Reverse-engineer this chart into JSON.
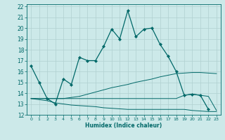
{
  "xlabel": "Humidex (Indice chaleur)",
  "bg_color": "#cce9e9",
  "grid_color": "#b0d0d0",
  "line_color": "#006868",
  "xlim": [
    -0.5,
    23.5
  ],
  "ylim": [
    12,
    22.2
  ],
  "yticks": [
    12,
    13,
    14,
    15,
    16,
    17,
    18,
    19,
    20,
    21,
    22
  ],
  "xticks": [
    0,
    1,
    2,
    3,
    4,
    5,
    6,
    7,
    8,
    9,
    10,
    11,
    12,
    13,
    14,
    15,
    16,
    17,
    18,
    19,
    20,
    21,
    22,
    23
  ],
  "line1_x": [
    0,
    1,
    2,
    3,
    4,
    5,
    6,
    7,
    8,
    9,
    10,
    11,
    12,
    13,
    14,
    15,
    16,
    17,
    18,
    19,
    20,
    21,
    22
  ],
  "line1_y": [
    16.5,
    15.0,
    13.5,
    13.0,
    15.3,
    14.8,
    17.3,
    17.0,
    17.0,
    18.3,
    19.9,
    19.0,
    21.6,
    19.2,
    19.9,
    20.0,
    18.5,
    17.4,
    16.0,
    13.8,
    13.9,
    13.8,
    12.5
  ],
  "line2_x": [
    0,
    1,
    2,
    3,
    4,
    5,
    6,
    7,
    8,
    9,
    10,
    11,
    12,
    13,
    14,
    15,
    16,
    17,
    18,
    19,
    20,
    21,
    22,
    23
  ],
  "line2_y": [
    13.5,
    13.5,
    13.5,
    13.5,
    13.5,
    13.6,
    13.7,
    13.9,
    14.1,
    14.3,
    14.5,
    14.65,
    14.8,
    15.0,
    15.15,
    15.3,
    15.5,
    15.65,
    15.8,
    15.85,
    15.9,
    15.9,
    15.85,
    15.8
  ],
  "line3_x": [
    0,
    1,
    2,
    3,
    4,
    5,
    6,
    7,
    8,
    9,
    10,
    11,
    12,
    13,
    14,
    15,
    16,
    17,
    18,
    19,
    20,
    21,
    22,
    23
  ],
  "line3_y": [
    13.5,
    13.4,
    13.3,
    13.1,
    13.0,
    12.9,
    12.85,
    12.8,
    12.75,
    12.65,
    12.6,
    12.55,
    12.5,
    12.5,
    12.5,
    12.5,
    12.5,
    12.5,
    12.5,
    12.5,
    12.4,
    12.35,
    12.3,
    12.3
  ],
  "line4_x": [
    0,
    1,
    2,
    3,
    4,
    5,
    6,
    7,
    8,
    9,
    10,
    11,
    12,
    13,
    14,
    15,
    16,
    17,
    18,
    19,
    20,
    21,
    22,
    23
  ],
  "line4_y": [
    13.5,
    13.5,
    13.5,
    13.5,
    13.5,
    13.5,
    13.5,
    13.5,
    13.5,
    13.5,
    13.5,
    13.5,
    13.5,
    13.5,
    13.5,
    13.5,
    13.5,
    13.5,
    13.5,
    13.8,
    13.9,
    13.8,
    13.7,
    12.4
  ]
}
